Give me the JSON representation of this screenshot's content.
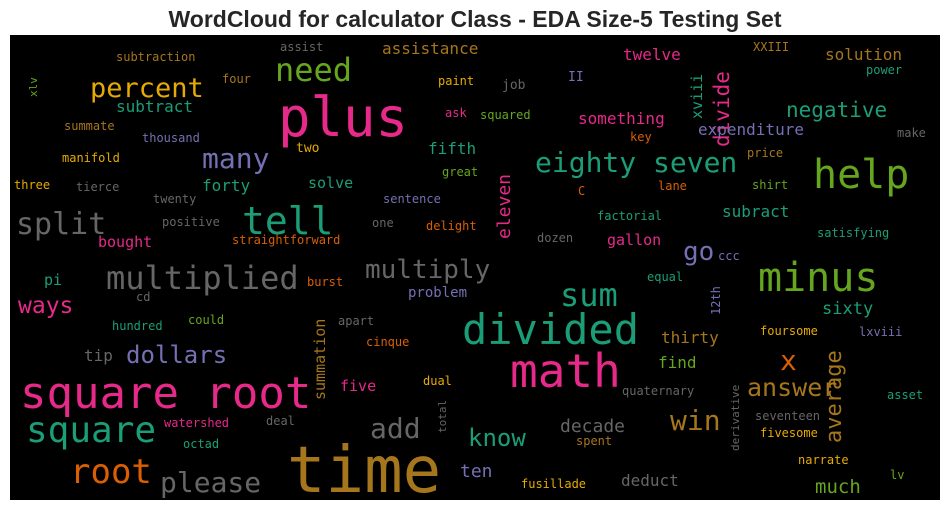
{
  "title": "WordCloud for calculator Class - EDA Size-5 Testing Set",
  "colors": {
    "background": "#000000",
    "title": "#262626"
  },
  "chart_data": {
    "type": "wordcloud",
    "palette": "Dark2",
    "words": [
      {
        "text": "time",
        "color": "#a6761d"
      },
      {
        "text": "plus",
        "color": "#e7298a"
      },
      {
        "text": "square root",
        "color": "#e7298a"
      },
      {
        "text": "math",
        "color": "#e7298a"
      },
      {
        "text": "divided",
        "color": "#1b9e77"
      },
      {
        "text": "minus",
        "color": "#66a61e"
      },
      {
        "text": "help",
        "color": "#66a61e"
      },
      {
        "text": "square",
        "color": "#1b9e77"
      },
      {
        "text": "tell",
        "color": "#1b9e77"
      },
      {
        "text": "split",
        "color": "#666666"
      },
      {
        "text": "multiplied",
        "color": "#666666"
      },
      {
        "text": "root",
        "color": "#d95f02"
      },
      {
        "text": "need",
        "color": "#66a61e"
      },
      {
        "text": "percent",
        "color": "#e6ab02"
      },
      {
        "text": "eighty seven",
        "color": "#1b9e77"
      },
      {
        "text": "sum",
        "color": "#1b9e77"
      },
      {
        "text": "multiply",
        "color": "#666666"
      },
      {
        "text": "many",
        "color": "#7570b3"
      },
      {
        "text": "please",
        "color": "#666666"
      },
      {
        "text": "add",
        "color": "#666666"
      },
      {
        "text": "win",
        "color": "#a6761d"
      },
      {
        "text": "answer",
        "color": "#a6761d"
      },
      {
        "text": "know",
        "color": "#1b9e77"
      },
      {
        "text": "dollars",
        "color": "#7570b3"
      },
      {
        "text": "ways",
        "color": "#e7298a"
      },
      {
        "text": "x",
        "color": "#d95f02"
      },
      {
        "text": "go",
        "color": "#7570b3"
      },
      {
        "text": "average",
        "color": "#a6761d"
      },
      {
        "text": "negative",
        "color": "#1b9e77"
      },
      {
        "text": "divide",
        "color": "#e7298a"
      },
      {
        "text": "much",
        "color": "#66a61e"
      },
      {
        "text": "eleven",
        "color": "#e7298a"
      },
      {
        "text": "decade",
        "color": "#666666"
      },
      {
        "text": "ten",
        "color": "#7570b3"
      },
      {
        "text": "summation",
        "color": "#a6761d"
      },
      {
        "text": "subtract",
        "color": "#1b9e77"
      },
      {
        "text": "something",
        "color": "#e7298a"
      },
      {
        "text": "assistance",
        "color": "#a6761d"
      },
      {
        "text": "twelve",
        "color": "#e7298a"
      },
      {
        "text": "solution",
        "color": "#a6761d"
      },
      {
        "text": "expenditure",
        "color": "#7570b3"
      },
      {
        "text": "fifth",
        "color": "#1b9e77"
      },
      {
        "text": "forty",
        "color": "#1b9e77"
      },
      {
        "text": "solve",
        "color": "#1b9e77"
      },
      {
        "text": "xviii",
        "color": "#1b9e77"
      },
      {
        "text": "subract",
        "color": "#1b9e77"
      },
      {
        "text": "sixty",
        "color": "#1b9e77"
      },
      {
        "text": "thirty",
        "color": "#a6761d"
      },
      {
        "text": "find",
        "color": "#66a61e"
      },
      {
        "text": "gallon",
        "color": "#e7298a"
      },
      {
        "text": "problem",
        "color": "#7570b3"
      },
      {
        "text": "deduct",
        "color": "#666666"
      },
      {
        "text": "tip",
        "color": "#666666"
      },
      {
        "text": "bought",
        "color": "#e7298a"
      },
      {
        "text": "five",
        "color": "#e7298a"
      },
      {
        "text": "pi",
        "color": "#1b9e77"
      },
      {
        "text": "two",
        "color": "#e6ab02"
      },
      {
        "text": "subtraction",
        "color": "#a6761d"
      },
      {
        "text": "assist",
        "color": "#666666"
      },
      {
        "text": "four",
        "color": "#a6761d"
      },
      {
        "text": "paint",
        "color": "#e6ab02"
      },
      {
        "text": "job",
        "color": "#666666"
      },
      {
        "text": "II",
        "color": "#7570b3"
      },
      {
        "text": "XXIII",
        "color": "#a6761d"
      },
      {
        "text": "power",
        "color": "#1b9e77"
      },
      {
        "text": "xlv",
        "color": "#66a61e"
      },
      {
        "text": "summate",
        "color": "#a6761d"
      },
      {
        "text": "ask",
        "color": "#e7298a"
      },
      {
        "text": "squared",
        "color": "#66a61e"
      },
      {
        "text": "key",
        "color": "#d95f02"
      },
      {
        "text": "make",
        "color": "#666666"
      },
      {
        "text": "thousand",
        "color": "#7570b3"
      },
      {
        "text": "manifold",
        "color": "#e6ab02"
      },
      {
        "text": "price",
        "color": "#a6761d"
      },
      {
        "text": "great",
        "color": "#66a61e"
      },
      {
        "text": "three",
        "color": "#e6ab02"
      },
      {
        "text": "tierce",
        "color": "#666666"
      },
      {
        "text": "C",
        "color": "#d95f02"
      },
      {
        "text": "lane",
        "color": "#d95f02"
      },
      {
        "text": "shirt",
        "color": "#66a61e"
      },
      {
        "text": "twenty",
        "color": "#666666"
      },
      {
        "text": "sentence",
        "color": "#7570b3"
      },
      {
        "text": "positive",
        "color": "#666666"
      },
      {
        "text": "one",
        "color": "#666666"
      },
      {
        "text": "delight",
        "color": "#d95f02"
      },
      {
        "text": "factorial",
        "color": "#1b9e77"
      },
      {
        "text": "dozen",
        "color": "#666666"
      },
      {
        "text": "straightforward",
        "color": "#d95f02"
      },
      {
        "text": "ccc",
        "color": "#7570b3"
      },
      {
        "text": "satisfying",
        "color": "#1b9e77"
      },
      {
        "text": "equal",
        "color": "#1b9e77"
      },
      {
        "text": "cd",
        "color": "#666666"
      },
      {
        "text": "burst",
        "color": "#d95f02"
      },
      {
        "text": "12th",
        "color": "#7570b3"
      },
      {
        "text": "hundred",
        "color": "#1b9e77"
      },
      {
        "text": "could",
        "color": "#66a61e"
      },
      {
        "text": "apart",
        "color": "#666666"
      },
      {
        "text": "lxviii",
        "color": "#7570b3"
      },
      {
        "text": "cinque",
        "color": "#d95f02"
      },
      {
        "text": "foursome",
        "color": "#e6ab02"
      },
      {
        "text": "dual",
        "color": "#e6ab02"
      },
      {
        "text": "quaternary",
        "color": "#666666"
      },
      {
        "text": "total",
        "color": "#666666"
      },
      {
        "text": "derivative",
        "color": "#666666"
      },
      {
        "text": "asset",
        "color": "#1b9e77"
      },
      {
        "text": "watershed",
        "color": "#e7298a"
      },
      {
        "text": "deal",
        "color": "#666666"
      },
      {
        "text": "seventeen",
        "color": "#666666"
      },
      {
        "text": "octad",
        "color": "#1b9e77"
      },
      {
        "text": "spent",
        "color": "#a6761d"
      },
      {
        "text": "fivesome",
        "color": "#e6ab02"
      },
      {
        "text": "narrate",
        "color": "#e6ab02"
      },
      {
        "text": "lv",
        "color": "#66a61e"
      },
      {
        "text": "fusillade",
        "color": "#e6ab02"
      }
    ]
  }
}
